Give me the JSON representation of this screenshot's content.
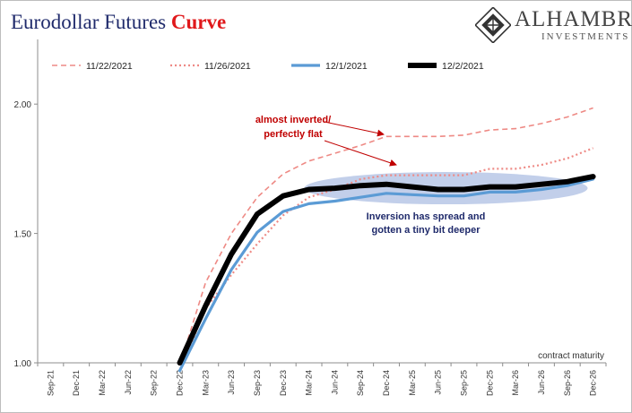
{
  "header": {
    "title_main": "Eurodollar Futures",
    "title_accent": "Curve",
    "brand_name": "ALHAMBRA",
    "brand_sub": "INVESTMENTS",
    "accent_color": "#e0181b",
    "title_color": "#1f2a6b"
  },
  "chart_data": {
    "type": "line",
    "categories": [
      "Sep-21",
      "Dec-21",
      "Mar-22",
      "Jun-22",
      "Sep-22",
      "Dec-22",
      "Mar-23",
      "Jun-23",
      "Sep-23",
      "Dec-23",
      "Mar-24",
      "Jun-24",
      "Sep-24",
      "Dec-24",
      "Mar-25",
      "Jun-25",
      "Sep-25",
      "Dec-25",
      "Mar-26",
      "Jun-26",
      "Sep-26",
      "Dec-26"
    ],
    "xlabel": "contract maturity",
    "ylabel": "",
    "ylim": [
      1.0,
      2.25
    ],
    "yticks": [
      1.0,
      1.5,
      2.0
    ],
    "ytick_labels": [
      "1.00",
      "1.50",
      "2.00"
    ],
    "legend_position": "top-left",
    "grid": false,
    "series": [
      {
        "name": "11/22/2021",
        "color": "#ee8a85",
        "style": "dashed",
        "width": 1.6,
        "values": [
          null,
          null,
          null,
          null,
          null,
          0.99,
          1.31,
          1.5,
          1.64,
          1.73,
          1.78,
          1.81,
          1.84,
          1.875,
          1.875,
          1.875,
          1.88,
          1.9,
          1.905,
          1.925,
          1.95,
          1.985
        ]
      },
      {
        "name": "11/26/2021",
        "color": "#ee8a85",
        "style": "dotted",
        "width": 2.2,
        "values": [
          null,
          null,
          null,
          null,
          null,
          0.97,
          1.21,
          1.34,
          1.46,
          1.57,
          1.64,
          1.67,
          1.71,
          1.725,
          1.725,
          1.725,
          1.725,
          1.75,
          1.75,
          1.765,
          1.79,
          1.83
        ]
      },
      {
        "name": "12/1/2021",
        "color": "#5b9bd5",
        "style": "solid",
        "width": 3.2,
        "values": [
          null,
          null,
          null,
          null,
          null,
          0.97,
          1.17,
          1.36,
          1.505,
          1.585,
          1.615,
          1.625,
          1.64,
          1.655,
          1.65,
          1.645,
          1.645,
          1.66,
          1.66,
          1.67,
          1.685,
          1.71
        ]
      },
      {
        "name": "12/2/2021",
        "color": "#000000",
        "style": "solid",
        "width": 6,
        "values": [
          null,
          null,
          null,
          null,
          null,
          1.0,
          1.22,
          1.42,
          1.575,
          1.645,
          1.67,
          1.675,
          1.685,
          1.69,
          1.68,
          1.67,
          1.67,
          1.68,
          1.68,
          1.69,
          1.7,
          1.72
        ]
      }
    ],
    "annotations": [
      {
        "lines": [
          "almost inverted/",
          "perfectly flat"
        ],
        "color": "#c00000"
      },
      {
        "lines": [
          "Inversion has spread and",
          "gotten a tiny bit deeper"
        ],
        "color": "#1f2a6b"
      }
    ]
  }
}
